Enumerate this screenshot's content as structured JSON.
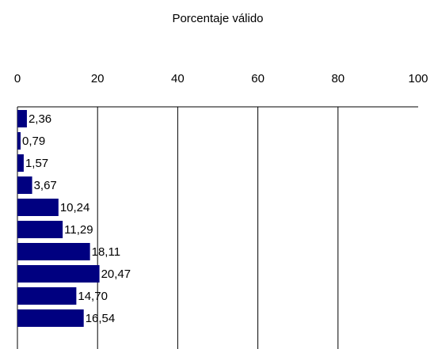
{
  "chart_data": {
    "type": "bar",
    "orientation": "horizontal",
    "title": "Porcentaje válido",
    "categories": [
      null,
      null,
      null,
      null,
      null,
      null,
      null,
      null,
      null,
      null
    ],
    "values": [
      2.36,
      0.79,
      1.57,
      3.67,
      10.24,
      11.29,
      18.11,
      20.47,
      14.7,
      16.54
    ],
    "value_labels": [
      "2,36",
      "0,79",
      "1,57",
      "3,67",
      "10,24",
      "11,29",
      "18,11",
      "20,47",
      "14,70",
      "16,54"
    ],
    "color": "#000080",
    "xlim": [
      0,
      100
    ],
    "xticks": [
      0,
      20,
      40,
      60,
      80,
      100
    ],
    "grid": true
  }
}
